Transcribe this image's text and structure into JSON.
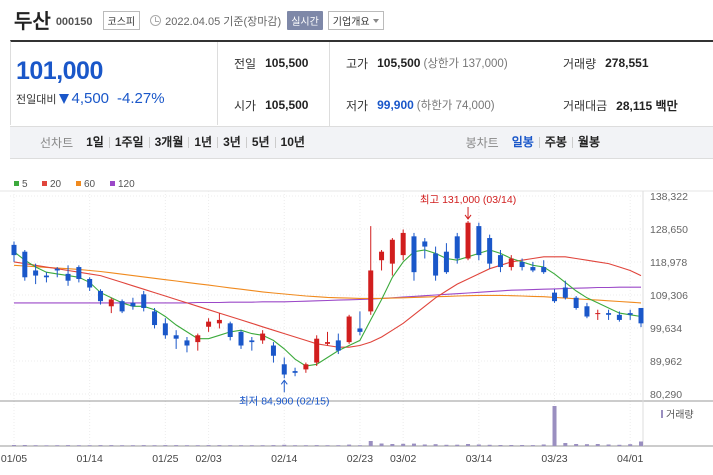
{
  "header": {
    "name": "두산",
    "code": "000150",
    "market": "코스피",
    "date": "2022.04.05 기준(장마감)",
    "realtime_badge": "실시간",
    "company_info_select": "기업개요"
  },
  "price": {
    "current": "101,000",
    "change_label": "전일대비",
    "change": "4,500",
    "change_pct": "-4.27%",
    "direction": "down",
    "color_down": "#1a57c9",
    "color_up": "#d11e1e"
  },
  "stats": {
    "prev_close_label": "전일",
    "prev_close": "105,500",
    "high_label": "고가",
    "high": "105,500",
    "upper_limit": "(상한가 137,000)",
    "volume_label": "거래량",
    "volume": "278,551",
    "open_label": "시가",
    "open": "105,500",
    "low_label": "저가",
    "low": "99,900",
    "lower_limit": "(하한가 74,000)",
    "amount_label": "거래대금",
    "amount": "28,115 백만"
  },
  "tabs": {
    "line_label": "선차트",
    "line_tabs": [
      "1일",
      "1주일",
      "3개월",
      "1년",
      "3년",
      "5년",
      "10년"
    ],
    "candle_label": "봉차트",
    "candle_tabs": [
      "일봉",
      "주봉",
      "월봉"
    ],
    "active_candle": "일봉"
  },
  "chart_data": {
    "type": "candlestick",
    "legend": [
      {
        "name": "5",
        "color": "#3caa3c"
      },
      {
        "name": "20",
        "color": "#e0453c"
      },
      {
        "name": "60",
        "color": "#f08a1e"
      },
      {
        "name": "120",
        "color": "#9b48c8"
      }
    ],
    "y_ticks": [
      "138,322",
      "128,650",
      "118,978",
      "109,306",
      "99,634",
      "89,962",
      "80,290"
    ],
    "ylim": [
      80290,
      138322
    ],
    "x_ticks": [
      {
        "label": "01/05",
        "idx": 0
      },
      {
        "label": "01/14",
        "idx": 7
      },
      {
        "label": "01/25",
        "idx": 14
      },
      {
        "label": "02/03",
        "idx": 18
      },
      {
        "label": "02/14",
        "idx": 25
      },
      {
        "label": "02/23",
        "idx": 32
      },
      {
        "label": "03/02",
        "idx": 36
      },
      {
        "label": "03/14",
        "idx": 43
      },
      {
        "label": "03/23",
        "idx": 50
      },
      {
        "label": "04/01",
        "idx": 57
      }
    ],
    "annotation_high": "최고 131,000 (03/14)",
    "annotation_low": "최저 84,900 (02/15)",
    "volume_label": "거래량",
    "candles": [
      [
        124000,
        125000,
        119000,
        121000
      ],
      [
        122000,
        122500,
        113500,
        114500
      ],
      [
        116500,
        118500,
        112500,
        115000
      ],
      [
        115000,
        116000,
        113000,
        114500
      ],
      [
        117000,
        117500,
        114500,
        116500
      ],
      [
        115500,
        118000,
        112000,
        113500
      ],
      [
        117500,
        118000,
        113000,
        114000
      ],
      [
        114000,
        114500,
        110500,
        111500
      ],
      [
        110500,
        111000,
        106500,
        107500
      ],
      [
        106000,
        108500,
        104000,
        108000
      ],
      [
        107500,
        108000,
        104000,
        104500
      ],
      [
        107000,
        108500,
        105000,
        106000
      ],
      [
        109500,
        110500,
        104500,
        105500
      ],
      [
        104500,
        105500,
        99500,
        100500
      ],
      [
        101000,
        102500,
        96500,
        97500
      ],
      [
        97500,
        99000,
        93500,
        96500
      ],
      [
        96000,
        97000,
        92500,
        94500
      ],
      [
        95500,
        98000,
        93000,
        97500
      ],
      [
        100000,
        102500,
        98500,
        101500
      ],
      [
        101000,
        104000,
        99500,
        102000
      ],
      [
        101000,
        101500,
        96000,
        97000
      ],
      [
        98500,
        99000,
        93500,
        94500
      ],
      [
        96000,
        97000,
        93000,
        95500
      ],
      [
        96000,
        99000,
        95000,
        98000
      ],
      [
        94500,
        95500,
        89500,
        91500
      ],
      [
        89000,
        91000,
        84900,
        86000
      ],
      [
        87000,
        88000,
        85500,
        86500
      ],
      [
        87500,
        89500,
        86500,
        89000
      ],
      [
        89500,
        97500,
        88500,
        96500
      ],
      [
        95000,
        98500,
        94500,
        95500
      ],
      [
        96000,
        98000,
        92000,
        93000
      ],
      [
        95500,
        103500,
        95000,
        103000
      ],
      [
        99500,
        104500,
        97500,
        98500
      ],
      [
        104500,
        129500,
        103500,
        116500
      ],
      [
        119500,
        122500,
        116500,
        122000
      ],
      [
        118500,
        126000,
        115000,
        125500
      ],
      [
        121000,
        128500,
        119500,
        127500
      ],
      [
        126500,
        127500,
        113500,
        116000
      ],
      [
        125000,
        126000,
        120000,
        123500
      ],
      [
        121500,
        123500,
        113500,
        115000
      ],
      [
        122000,
        124500,
        115500,
        116000
      ],
      [
        126500,
        127500,
        118500,
        120000
      ],
      [
        120000,
        131000,
        119500,
        130500
      ],
      [
        129500,
        130500,
        119500,
        121000
      ],
      [
        126000,
        127000,
        117000,
        118500
      ],
      [
        121000,
        122500,
        116000,
        117500
      ],
      [
        117500,
        121000,
        116500,
        120000
      ],
      [
        119000,
        120000,
        116500,
        117500
      ],
      [
        117500,
        119000,
        116000,
        116500
      ],
      [
        117500,
        119500,
        115500,
        116000
      ],
      [
        110000,
        111000,
        107000,
        107500
      ],
      [
        111500,
        113500,
        108000,
        108500
      ],
      [
        108500,
        109000,
        105000,
        105500
      ],
      [
        106000,
        107000,
        102500,
        103000
      ],
      [
        104000,
        105000,
        102000,
        104000
      ],
      [
        104000,
        105000,
        102000,
        103500
      ],
      [
        103500,
        104500,
        101500,
        102000
      ],
      [
        104000,
        105000,
        102000,
        103500
      ],
      [
        105500,
        105500,
        99900,
        101000
      ]
    ],
    "volumes": [
      1,
      1,
      0.8,
      0.7,
      0.8,
      0.9,
      0.8,
      0.8,
      0.9,
      0.9,
      0.8,
      0.8,
      0.9,
      0.8,
      0.9,
      0.9,
      0.8,
      0.8,
      0.9,
      0.9,
      0.8,
      0.8,
      0.8,
      0.8,
      0.9,
      1.2,
      0.8,
      0.8,
      0.9,
      0.8,
      0.8,
      1.4,
      0.8,
      5,
      2.5,
      2,
      2.2,
      2.4,
      1.5,
      1.8,
      1.2,
      1.3,
      2,
      1.5,
      1.2,
      1,
      1,
      1,
      0.9,
      1.5,
      40,
      3,
      2,
      1.8,
      2,
      1.5,
      1.2,
      1.8,
      4.5
    ],
    "ma5": [
      122000,
      119500,
      117500,
      116000,
      115500,
      115000,
      114500,
      113000,
      110000,
      108500,
      107000,
      106000,
      106000,
      105000,
      103000,
      100500,
      98500,
      96500,
      96500,
      97500,
      98500,
      99000,
      98000,
      97500,
      96000,
      93500,
      90500,
      88500,
      89000,
      91000,
      93000,
      94500,
      96000,
      102000,
      108000,
      114500,
      119000,
      122000,
      122500,
      121500,
      120000,
      119500,
      120500,
      121500,
      122500,
      121500,
      120000,
      119000,
      118000,
      117500,
      115500,
      113000,
      110500,
      108500,
      107000,
      105500,
      104000,
      103500,
      103000
    ],
    "ma20": [
      119000,
      118500,
      118000,
      117500,
      117000,
      116500,
      116000,
      115500,
      115000,
      114000,
      113000,
      112000,
      111000,
      110000,
      109000,
      108000,
      107000,
      106000,
      105000,
      104000,
      103000,
      102000,
      101000,
      100000,
      99000,
      98000,
      97000,
      96000,
      95000,
      94500,
      94000,
      94000,
      94500,
      95500,
      97000,
      99000,
      101000,
      103500,
      106000,
      108500,
      110500,
      112500,
      114000,
      115500,
      117000,
      118000,
      119000,
      119500,
      120000,
      120500,
      120500,
      120500,
      120000,
      119500,
      119000,
      118500,
      117500,
      116500,
      115000
    ],
    "ma60": [
      118000,
      117800,
      117600,
      117400,
      117200,
      117000,
      116800,
      116500,
      116200,
      115800,
      115400,
      115000,
      114600,
      114200,
      113800,
      113400,
      113000,
      112600,
      112200,
      111800,
      111400,
      111000,
      110600,
      110200,
      109900,
      109600,
      109300,
      109000,
      108800,
      108600,
      108500,
      108400,
      108300,
      108300,
      108300,
      108400,
      108500,
      108600,
      108700,
      108800,
      108900,
      109000,
      109100,
      109200,
      109200,
      109200,
      109100,
      109000,
      108900,
      108800,
      108600,
      108400,
      108200,
      108000,
      107800,
      107600,
      107400,
      107200,
      107000
    ],
    "ma120": [
      107000,
      107000,
      107000,
      107000,
      107000,
      107000,
      107000,
      107000,
      107000,
      107000,
      107000,
      107000,
      107000,
      107000,
      107000,
      107000,
      107000,
      107100,
      107100,
      107100,
      107200,
      107200,
      107200,
      107300,
      107300,
      107300,
      107400,
      107500,
      107600,
      107700,
      107800,
      107900,
      108000,
      108100,
      108300,
      108500,
      108700,
      108900,
      109100,
      109300,
      109500,
      109700,
      109900,
      110100,
      110300,
      110500,
      110700,
      110800,
      110900,
      111000,
      111100,
      111200,
      111300,
      111400,
      111500,
      111500,
      111600,
      111600,
      111600
    ]
  }
}
